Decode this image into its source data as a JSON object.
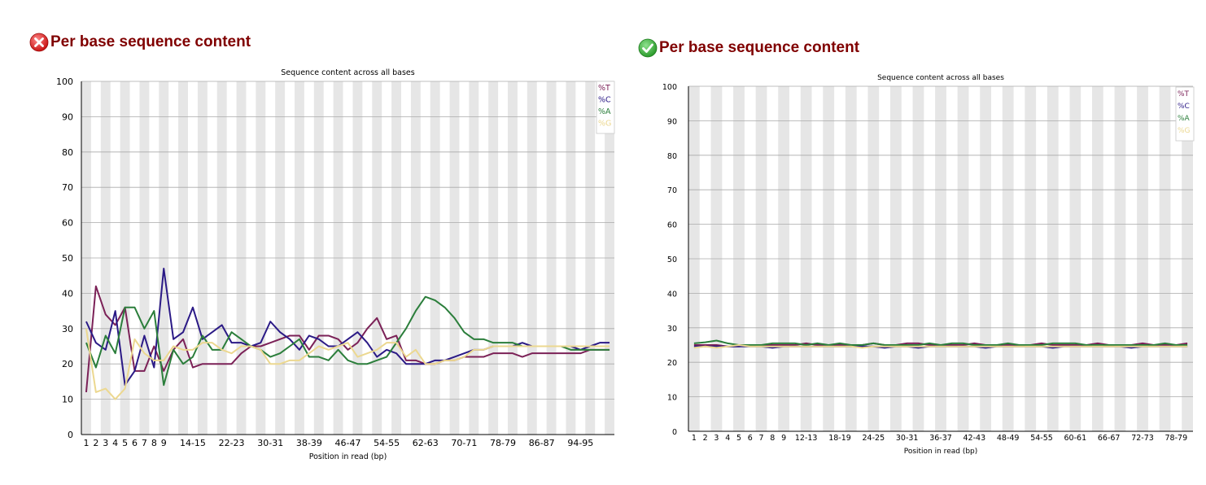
{
  "panels": [
    {
      "status": "fail",
      "status_icon": "error-x-icon",
      "heading": "Per base sequence content"
    },
    {
      "status": "pass",
      "status_icon": "check-mark-icon",
      "heading": "Per base sequence content"
    }
  ],
  "chart_data": [
    {
      "type": "line",
      "title": "Sequence content across all bases",
      "xlabel": "Position in read (bp)",
      "ylabel": "",
      "ylim": [
        0,
        100
      ],
      "yticks": [
        0,
        10,
        20,
        30,
        40,
        50,
        60,
        70,
        80,
        90,
        100
      ],
      "categories": [
        "1",
        "2",
        "3",
        "4",
        "5",
        "6",
        "7",
        "8",
        "9",
        "10-11",
        "12-13",
        "14-15",
        "16-17",
        "18-19",
        "20-21",
        "22-23",
        "24-25",
        "26-27",
        "28-29",
        "30-31",
        "32-33",
        "34-35",
        "36-37",
        "38-39",
        "40-41",
        "42-43",
        "44-45",
        "46-47",
        "48-49",
        "50-51",
        "52-53",
        "54-55",
        "56-57",
        "58-59",
        "60-61",
        "62-63",
        "64-65",
        "66-67",
        "68-69",
        "70-71",
        "72-73",
        "74-75",
        "76-77",
        "78-79",
        "80-81",
        "82-83",
        "84-85",
        "86-87",
        "88-89",
        "90-91",
        "92-93",
        "94-95",
        "96-97",
        "98-99",
        "100-101"
      ],
      "x_tick_labels": [
        "1",
        "2",
        "3",
        "4",
        "5",
        "6",
        "7",
        "8",
        "9",
        "14-15",
        "22-23",
        "30-31",
        "38-39",
        "46-47",
        "54-55",
        "62-63",
        "70-71",
        "78-79",
        "86-87",
        "94-95"
      ],
      "grid": true,
      "legend_position": "top-right",
      "series": [
        {
          "name": "%T",
          "color": "#7b2157",
          "values": [
            12,
            42,
            34,
            31,
            36,
            18,
            18,
            25,
            18,
            24,
            27,
            19,
            20,
            20,
            20,
            20,
            23,
            25,
            25,
            26,
            27,
            28,
            28,
            24,
            28,
            28,
            27,
            24,
            26,
            30,
            33,
            27,
            28,
            21,
            21,
            20,
            20,
            21,
            21,
            22,
            22,
            22,
            23,
            23,
            23,
            22,
            23,
            23,
            23,
            23,
            23,
            23,
            24,
            24,
            24
          ]
        },
        {
          "name": "%C",
          "color": "#2b1a86",
          "values": [
            32,
            26,
            24,
            35,
            14,
            18,
            28,
            19,
            47,
            27,
            29,
            36,
            27,
            29,
            31,
            26,
            26,
            25,
            26,
            32,
            29,
            27,
            24,
            28,
            27,
            25,
            25,
            27,
            29,
            26,
            22,
            24,
            23,
            20,
            20,
            20,
            21,
            21,
            22,
            23,
            24,
            24,
            25,
            25,
            25,
            26,
            25,
            25,
            25,
            25,
            25,
            24,
            25,
            26,
            26
          ]
        },
        {
          "name": "%A",
          "color": "#2b7e3b",
          "values": [
            26,
            19,
            28,
            23,
            36,
            36,
            30,
            35,
            14,
            24,
            20,
            22,
            28,
            24,
            24,
            29,
            27,
            25,
            24,
            22,
            23,
            25,
            27,
            22,
            22,
            21,
            24,
            21,
            20,
            20,
            21,
            22,
            26,
            30,
            35,
            39,
            38,
            36,
            33,
            29,
            27,
            27,
            26,
            26,
            26,
            25,
            25,
            25,
            25,
            25,
            24,
            24,
            24,
            24,
            24
          ]
        },
        {
          "name": "%G",
          "color": "#ecd890",
          "values": [
            30,
            12,
            13,
            10,
            13,
            27,
            23,
            21,
            21,
            25,
            24,
            24,
            26,
            26,
            24,
            23,
            25,
            25,
            24,
            20,
            20,
            21,
            21,
            23,
            25,
            24,
            25,
            26,
            22,
            23,
            24,
            26,
            26,
            22,
            24,
            20,
            20,
            21,
            21,
            22,
            24,
            24,
            25,
            25,
            25,
            25,
            25,
            25,
            25,
            25,
            25,
            25,
            25,
            25,
            25
          ]
        }
      ]
    },
    {
      "type": "line",
      "title": "Sequence content across all bases",
      "xlabel": "Position in read (bp)",
      "ylabel": "",
      "ylim": [
        0,
        100
      ],
      "yticks": [
        0,
        10,
        20,
        30,
        40,
        50,
        60,
        70,
        80,
        90,
        100
      ],
      "categories": [
        "1",
        "2",
        "3",
        "4",
        "5",
        "6",
        "7",
        "8",
        "9",
        "10-11",
        "12-13",
        "14-15",
        "16-17",
        "18-19",
        "20-21",
        "22-23",
        "24-25",
        "26-27",
        "28-29",
        "30-31",
        "32-33",
        "34-35",
        "36-37",
        "38-39",
        "40-41",
        "42-43",
        "44-45",
        "46-47",
        "48-49",
        "50-51",
        "52-53",
        "54-55",
        "56-57",
        "58-59",
        "60-61",
        "62-63",
        "64-65",
        "66-67",
        "68-69",
        "70-71",
        "72-73",
        "74-75",
        "76-77",
        "78-79",
        "80-81"
      ],
      "x_tick_labels": [
        "1",
        "2",
        "3",
        "4",
        "5",
        "6",
        "7",
        "8",
        "9",
        "12-13",
        "18-19",
        "24-25",
        "30-31",
        "36-37",
        "42-43",
        "48-49",
        "54-55",
        "60-61",
        "66-67",
        "72-73",
        "78-79"
      ],
      "grid": true,
      "legend_position": "top-right",
      "series": [
        {
          "name": "%T",
          "color": "#7b2157",
          "values": [
            25,
            25,
            25,
            24.6,
            24.6,
            25,
            25,
            25,
            25,
            25,
            25.5,
            25,
            25,
            25,
            25,
            25,
            25.5,
            25,
            25,
            25.5,
            25.5,
            25,
            25,
            25,
            25,
            25.5,
            25,
            25,
            25,
            25,
            25,
            25.5,
            25,
            25,
            25,
            25,
            25.5,
            25,
            25,
            25,
            25.5,
            25,
            25,
            25,
            25.5
          ]
        },
        {
          "name": "%C",
          "color": "#2b1a86",
          "values": [
            24.6,
            24.6,
            24.6,
            24.6,
            24.6,
            24.6,
            24.6,
            24.2,
            24.6,
            24.6,
            24.6,
            24.6,
            24.6,
            24.6,
            24.6,
            24.6,
            24.6,
            24.2,
            24.6,
            24.6,
            24.2,
            24.6,
            24.6,
            24.6,
            24.6,
            24.6,
            24.2,
            24.6,
            24.6,
            24.6,
            24.6,
            24.6,
            24.2,
            24.6,
            24.6,
            24.6,
            24.6,
            24.6,
            24.6,
            24.2,
            24.6,
            24.6,
            24.6,
            24.6,
            24.6
          ]
        },
        {
          "name": "%A",
          "color": "#2b7e3b",
          "values": [
            25.5,
            25.8,
            26.3,
            25.5,
            25,
            25,
            25,
            25.5,
            25.5,
            25.5,
            25,
            25.5,
            25,
            25.5,
            25,
            25,
            25.5,
            25,
            25,
            25,
            25,
            25.5,
            25,
            25.5,
            25.5,
            25,
            25,
            25,
            25.5,
            25,
            25,
            25,
            25.5,
            25.5,
            25.5,
            25,
            25,
            25,
            25,
            25,
            25,
            25,
            25.5,
            25,
            25
          ]
        },
        {
          "name": "%G",
          "color": "#ecd890",
          "values": [
            24.2,
            24.6,
            24.2,
            24.6,
            25,
            24.6,
            24.6,
            24.6,
            24.6,
            24.6,
            24.6,
            24.6,
            24.6,
            24.6,
            24.6,
            24.2,
            24.6,
            24.6,
            24.6,
            24.6,
            24.6,
            24.6,
            24.6,
            24.6,
            24.6,
            24.6,
            24.6,
            24.6,
            24.6,
            24.6,
            24.6,
            24.6,
            24.6,
            24.6,
            24.6,
            24.6,
            24.6,
            24.6,
            24.6,
            24.6,
            24.6,
            24.6,
            24.6,
            24.6,
            24.6
          ]
        }
      ]
    }
  ]
}
